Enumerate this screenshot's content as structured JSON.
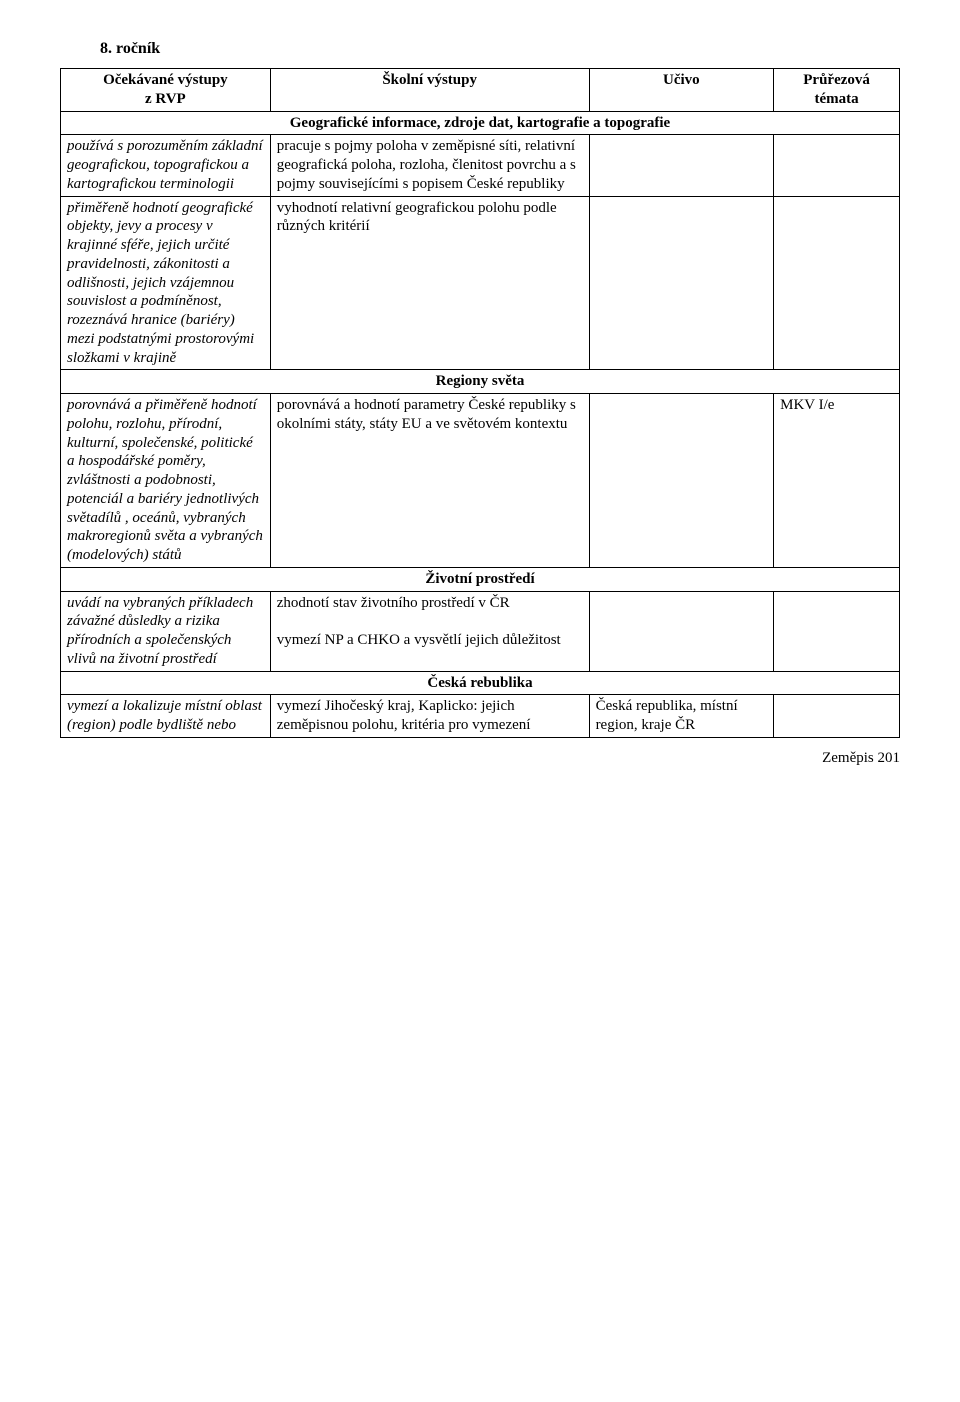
{
  "heading": "8. ročník",
  "header": {
    "col1_line1": "Očekávané výstupy",
    "col1_line2": "z RVP",
    "col2": "Školní výstupy",
    "col3": "Učivo",
    "col4_line1": "Průřezová",
    "col4_line2": "témata"
  },
  "sections": {
    "s1": "Geografické informace, zdroje dat, kartografie a topografie",
    "s2": "Regiony světa",
    "s3": "Životní prostředí",
    "s4": "Česká rebublika"
  },
  "rows": {
    "r1": {
      "c1": "používá s porozuměním základní geografickou, topografickou a kartografickou terminologii",
      "c2": "pracuje s pojmy poloha v zeměpisné síti, relativní geografická poloha, rozloha, členitost povrchu a s pojmy souvisejícími s popisem České republiky",
      "c3": "",
      "c4": ""
    },
    "r2": {
      "c1": "přiměřeně hodnotí geografické objekty, jevy a procesy v krajinné sféře, jejich určité pravidelnosti, zákonitosti a odlišnosti, jejich vzájemnou souvislost a podmíněnost, rozeznává hranice (bariéry) mezi podstatnými prostorovými složkami v krajině",
      "c2": "vyhodnotí relativní geografickou polohu podle různých kritérií",
      "c3": "",
      "c4": ""
    },
    "r3": {
      "c1": "porovnává a přiměřeně hodnotí polohu, rozlohu, přírodní, kulturní, společenské, politické a hospodářské poměry, zvláštnosti a podobnosti, potenciál a bariéry jednotlivých světadílů , oceánů, vybraných makroregionů světa a vybraných (modelových) států",
      "c2": "porovnává a hodnotí parametry České republiky s okolními státy, státy EU a ve světovém kontextu",
      "c3": "",
      "c4": "MKV I/e"
    },
    "r4": {
      "c1": "uvádí na vybraných příkladech závažné důsledky a rizika přírodních a společenských vlivů na životní prostředí",
      "c2": "zhodnotí stav životního prostředí v ČR\n\nvymezí NP a CHKO a vysvětlí jejich důležitost",
      "c3": "",
      "c4": ""
    },
    "r5": {
      "c1": "vymezí a lokalizuje místní oblast (region) podle bydliště nebo",
      "c2": "vymezí Jihočeský kraj, Kaplicko: jejich zeměpisnou polohu, kritéria pro vymezení",
      "c3": "Česká republika, místní region, kraje ČR",
      "c4": ""
    }
  },
  "footer": "Zeměpis  201"
}
